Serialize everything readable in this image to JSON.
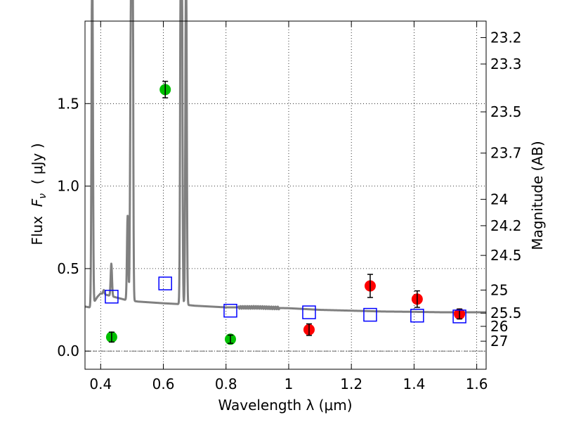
{
  "chart_data": {
    "type": "scatter",
    "xlabel": "Wavelength  λ (μm)",
    "ylabel_prefix": "Flux  ",
    "ylabel_symbol": "F",
    "ylabel_subscript": "ν",
    "ylabel_units": "  ( μJy )",
    "ylabel_right": "Magnitude (AB)",
    "xlim": [
      0.35,
      1.63
    ],
    "ylim": [
      -0.11,
      2.0
    ],
    "grid": true,
    "x_ticks": [
      0.4,
      0.6,
      0.8,
      1.0,
      1.2,
      1.4,
      1.6
    ],
    "x_tick_labels": [
      "0.4",
      "0.6",
      "0.8",
      "1",
      "1.2",
      "1.4",
      "1.6"
    ],
    "y_ticks": [
      0.0,
      0.5,
      1.0,
      1.5
    ],
    "y_tick_labels": [
      "0.0",
      "0.5",
      "1.0",
      "1.5"
    ],
    "right_ticks": [
      {
        "label": "23.2",
        "flux": 1.9
      },
      {
        "label": "23.3",
        "flux": 1.74
      },
      {
        "label": "23.5",
        "flux": 1.45
      },
      {
        "label": "23.7",
        "flux": 1.2
      },
      {
        "label": "24",
        "flux": 0.92
      },
      {
        "label": "24.2",
        "flux": 0.76
      },
      {
        "label": "24.5",
        "flux": 0.58
      },
      {
        "label": "25",
        "flux": 0.37
      },
      {
        "label": "25.5",
        "flux": 0.23
      },
      {
        "label": "26",
        "flux": 0.15
      },
      {
        "label": "27",
        "flux": 0.06
      }
    ],
    "colors": {
      "green": "#00c000",
      "red": "#ff0000",
      "blue": "#0000ff",
      "model": "#808080"
    },
    "series": [
      {
        "name": "optical photometry (green)",
        "marker": "circle",
        "color": "#00c000",
        "points": [
          {
            "x": 0.435,
            "y": 0.085,
            "err": 0.03
          },
          {
            "x": 0.606,
            "y": 1.585,
            "err": 0.05
          },
          {
            "x": 0.814,
            "y": 0.072,
            "err": 0.025
          }
        ]
      },
      {
        "name": "near-IR photometry (red)",
        "marker": "circle",
        "color": "#ff0000",
        "points": [
          {
            "x": 1.065,
            "y": 0.13,
            "err": 0.035
          },
          {
            "x": 1.26,
            "y": 0.395,
            "err": 0.07
          },
          {
            "x": 1.41,
            "y": 0.315,
            "err": 0.05
          },
          {
            "x": 1.545,
            "y": 0.225,
            "err": 0.03
          }
        ]
      },
      {
        "name": "model photometry (blue squares)",
        "marker": "square",
        "color": "#0000ff",
        "points": [
          {
            "x": 0.435,
            "y": 0.33
          },
          {
            "x": 0.606,
            "y": 0.41
          },
          {
            "x": 0.814,
            "y": 0.245
          },
          {
            "x": 1.065,
            "y": 0.235
          },
          {
            "x": 1.26,
            "y": 0.22
          },
          {
            "x": 1.41,
            "y": 0.215
          },
          {
            "x": 1.545,
            "y": 0.21
          }
        ]
      }
    ],
    "model_spectrum": {
      "continuum": [
        [
          0.35,
          0.27
        ],
        [
          0.365,
          0.265
        ],
        [
          0.38,
          0.3
        ],
        [
          0.39,
          0.33
        ],
        [
          0.4,
          0.35
        ],
        [
          0.42,
          0.34
        ],
        [
          0.45,
          0.325
        ],
        [
          0.48,
          0.31
        ],
        [
          0.52,
          0.3
        ],
        [
          0.56,
          0.295
        ],
        [
          0.6,
          0.29
        ],
        [
          0.65,
          0.285
        ],
        [
          0.7,
          0.275
        ],
        [
          0.75,
          0.27
        ],
        [
          0.8,
          0.265
        ],
        [
          0.85,
          0.265
        ],
        [
          0.9,
          0.265
        ],
        [
          0.95,
          0.262
        ],
        [
          1.0,
          0.26
        ],
        [
          1.05,
          0.255
        ],
        [
          1.1,
          0.25
        ],
        [
          1.2,
          0.245
        ],
        [
          1.3,
          0.24
        ],
        [
          1.4,
          0.238
        ],
        [
          1.5,
          0.235
        ],
        [
          1.63,
          0.235
        ]
      ],
      "lines": [
        {
          "x": 0.373,
          "peak": 2.5,
          "width": 0.003
        },
        {
          "x": 0.41,
          "peak": 0.37,
          "width": 0.003
        },
        {
          "x": 0.434,
          "peak": 0.53,
          "width": 0.003
        },
        {
          "x": 0.486,
          "peak": 0.82,
          "width": 0.003
        },
        {
          "x": 0.496,
          "peak": 1.76,
          "width": 0.003
        },
        {
          "x": 0.5007,
          "peak": 1.74,
          "width": 0.003
        },
        {
          "x": 0.5009,
          "peak": 2.5,
          "width": 0.003
        },
        {
          "x": 0.656,
          "peak": 2.5,
          "width": 0.003
        },
        {
          "x": 0.6585,
          "peak": 2.5,
          "width": 0.003
        },
        {
          "x": 0.6725,
          "peak": 2.5,
          "width": 0.003
        }
      ]
    }
  }
}
